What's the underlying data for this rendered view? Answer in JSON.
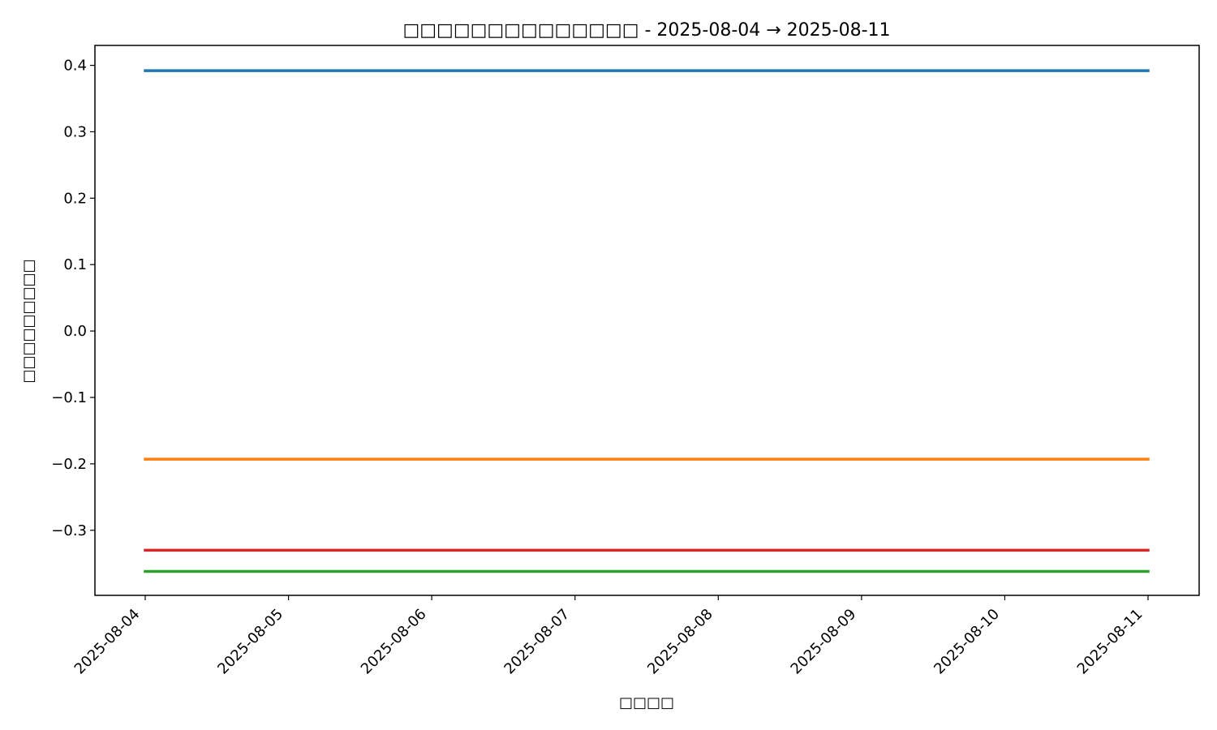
{
  "chart_data": {
    "type": "line",
    "title": "□□□□□□□□□□□□□□ - 2025-08-04 → 2025-08-11",
    "xlabel": "□□□□",
    "ylabel": "□□□□□□□□□",
    "x": [
      "2025-08-04",
      "2025-08-05",
      "2025-08-06",
      "2025-08-07",
      "2025-08-08",
      "2025-08-09",
      "2025-08-10",
      "2025-08-11"
    ],
    "y_ticks": [
      0.4,
      0.3,
      0.2,
      0.1,
      0.0,
      -0.1,
      -0.2,
      -0.3
    ],
    "y_tick_labels": [
      "0.4",
      "0.3",
      "0.2",
      "0.1",
      "0.0",
      "−0.1",
      "−0.2",
      "−0.3"
    ],
    "ylim": [
      -0.398,
      0.43
    ],
    "grid": false,
    "series": [
      {
        "color": "#1f77b4",
        "values": [
          0.392,
          0.392,
          0.392,
          0.392,
          0.392,
          0.392,
          0.392,
          0.392
        ]
      },
      {
        "color": "#ff7f0e",
        "values": [
          -0.193,
          -0.193,
          -0.193,
          -0.193,
          -0.193,
          -0.193,
          -0.193,
          -0.193
        ]
      },
      {
        "color": "#d62728",
        "values": [
          -0.33,
          -0.33,
          -0.33,
          -0.33,
          -0.33,
          -0.33,
          -0.33,
          -0.33
        ]
      },
      {
        "color": "#2ca02c",
        "values": [
          -0.362,
          -0.362,
          -0.362,
          -0.362,
          -0.362,
          -0.362,
          -0.362,
          -0.362
        ]
      }
    ]
  }
}
